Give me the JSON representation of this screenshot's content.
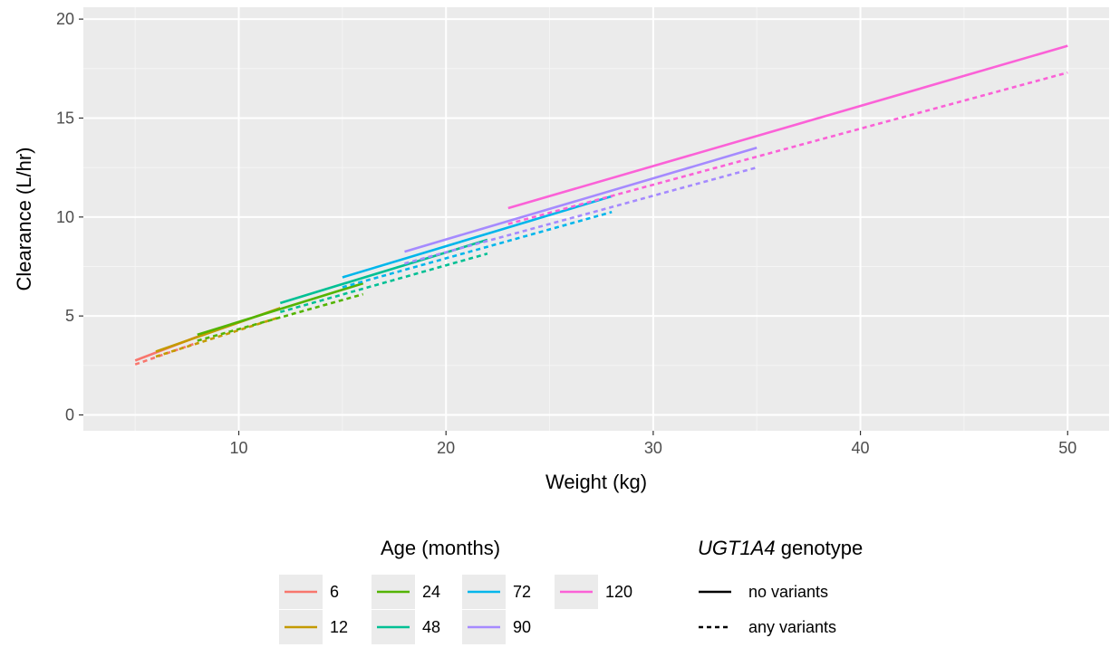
{
  "chart_data": {
    "type": "line",
    "xlabel": "Weight (kg)",
    "ylabel": "Clearance (L/hr)",
    "xlim": [
      2.5,
      52
    ],
    "ylim": [
      -0.8,
      20.6
    ],
    "x_ticks": [
      10,
      20,
      30,
      40,
      50
    ],
    "y_ticks": [
      0,
      5,
      10,
      15,
      20
    ],
    "x_tick_labels": [
      "10",
      "20",
      "30",
      "40",
      "50"
    ],
    "y_tick_labels": [
      "0",
      "5",
      "10",
      "15",
      "20"
    ],
    "grid": true,
    "background": "#ebebeb",
    "legend_position": "bottom",
    "legend_age": {
      "title": "Age (months)",
      "entries": [
        {
          "label": "6",
          "color": "#f8766d"
        },
        {
          "label": "12",
          "color": "#c49a00"
        },
        {
          "label": "24",
          "color": "#53b400"
        },
        {
          "label": "48",
          "color": "#00c094"
        },
        {
          "label": "72",
          "color": "#00b6eb"
        },
        {
          "label": "90",
          "color": "#a58aff"
        },
        {
          "label": "120",
          "color": "#fb61d7"
        }
      ]
    },
    "legend_genotype": {
      "title_italic": "UGT1A4",
      "title_rest": " genotype",
      "entries": [
        {
          "label": "no variants",
          "linetype": "solid"
        },
        {
          "label": "any variants",
          "linetype": "dashed"
        }
      ]
    },
    "series": [
      {
        "name": "6",
        "genotype": "no variants",
        "color": "#f8766d",
        "dash": false,
        "x": [
          5,
          8
        ],
        "y": [
          2.75,
          3.95
        ]
      },
      {
        "name": "6",
        "genotype": "any variants",
        "color": "#f8766d",
        "dash": true,
        "x": [
          5,
          8
        ],
        "y": [
          2.55,
          3.65
        ]
      },
      {
        "name": "12",
        "genotype": "no variants",
        "color": "#c49a00",
        "dash": false,
        "x": [
          6,
          12
        ],
        "y": [
          3.2,
          5.4
        ]
      },
      {
        "name": "12",
        "genotype": "any variants",
        "color": "#c49a00",
        "dash": true,
        "x": [
          6,
          12
        ],
        "y": [
          2.95,
          4.95
        ]
      },
      {
        "name": "24",
        "genotype": "no variants",
        "color": "#53b400",
        "dash": false,
        "x": [
          8,
          16
        ],
        "y": [
          4.05,
          6.65
        ]
      },
      {
        "name": "24",
        "genotype": "any variants",
        "color": "#53b400",
        "dash": true,
        "x": [
          8,
          16
        ],
        "y": [
          3.75,
          6.1
        ]
      },
      {
        "name": "48",
        "genotype": "no variants",
        "color": "#00c094",
        "dash": false,
        "x": [
          12,
          22
        ],
        "y": [
          5.65,
          8.85
        ]
      },
      {
        "name": "48",
        "genotype": "any variants",
        "color": "#00c094",
        "dash": true,
        "x": [
          12,
          22
        ],
        "y": [
          5.2,
          8.15
        ]
      },
      {
        "name": "72",
        "genotype": "no variants",
        "color": "#00b6eb",
        "dash": false,
        "x": [
          15,
          28
        ],
        "y": [
          6.95,
          11.05
        ]
      },
      {
        "name": "72",
        "genotype": "any variants",
        "color": "#00b6eb",
        "dash": true,
        "x": [
          15,
          28
        ],
        "y": [
          6.45,
          10.25
        ]
      },
      {
        "name": "90",
        "genotype": "no variants",
        "color": "#a58aff",
        "dash": false,
        "x": [
          18,
          35
        ],
        "y": [
          8.25,
          13.5
        ]
      },
      {
        "name": "90",
        "genotype": "any variants",
        "color": "#a58aff",
        "dash": true,
        "x": [
          18,
          35
        ],
        "y": [
          7.65,
          12.5
        ]
      },
      {
        "name": "120",
        "genotype": "no variants",
        "color": "#fb61d7",
        "dash": false,
        "x": [
          23,
          50
        ],
        "y": [
          10.45,
          18.65
        ]
      },
      {
        "name": "120",
        "genotype": "any variants",
        "color": "#fb61d7",
        "dash": true,
        "x": [
          23,
          50
        ],
        "y": [
          9.65,
          17.3
        ]
      }
    ]
  }
}
